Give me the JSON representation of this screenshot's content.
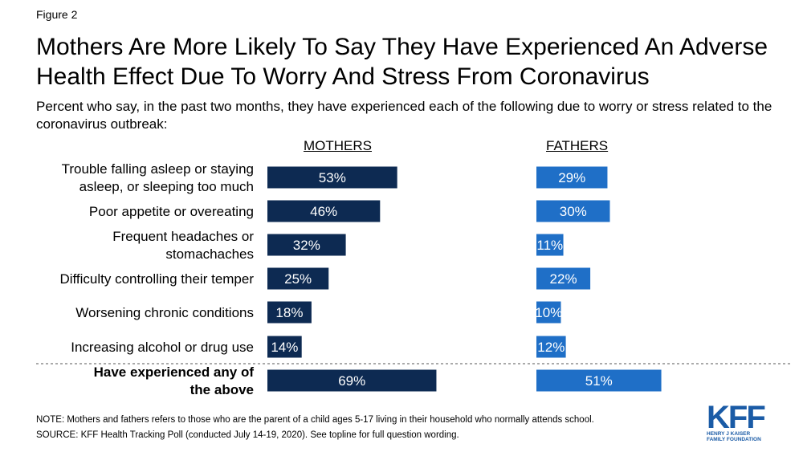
{
  "figure_label": "Figure 2",
  "title": "Mothers Are More Likely To Say They Have Experienced An Adverse Health Effect Due To Worry And Stress From Coronavirus",
  "subtitle": "Percent who say, in the past two months, they have experienced each of the following due to worry or stress related to the coronavirus outbreak:",
  "note": "NOTE: Mothers and fathers refers to those who are the parent of a child ages 5-17 living in their household who normally attends school.",
  "source": "SOURCE: KFF Health Tracking Poll (conducted July 14-19, 2020). See topline for full question wording.",
  "logo": {
    "main": "KFF",
    "line1": "HENRY J KAISER",
    "line2": "FAMILY FOUNDATION"
  },
  "colors": {
    "mothers": "#0d2a52",
    "fathers": "#1f6fc7",
    "label_text": "#ffffff"
  },
  "chart_data": {
    "type": "bar",
    "orientation": "horizontal",
    "categories": [
      [
        "Trouble falling asleep or staying",
        "asleep, or sleeping too much"
      ],
      [
        "Poor appetite or overeating"
      ],
      [
        "Frequent headaches or",
        "stomachaches"
      ],
      [
        "Difficulty controlling their temper"
      ],
      [
        "Worsening chronic conditions"
      ],
      [
        "Increasing alcohol or drug use"
      ],
      [
        "Have experienced any of",
        "the above"
      ]
    ],
    "bold_category_index": 6,
    "series": [
      {
        "name": "MOTHERS",
        "values": [
          53,
          46,
          32,
          25,
          18,
          14,
          69
        ]
      },
      {
        "name": "FATHERS",
        "values": [
          29,
          30,
          11,
          22,
          10,
          12,
          51
        ]
      }
    ],
    "value_suffix": "%"
  }
}
